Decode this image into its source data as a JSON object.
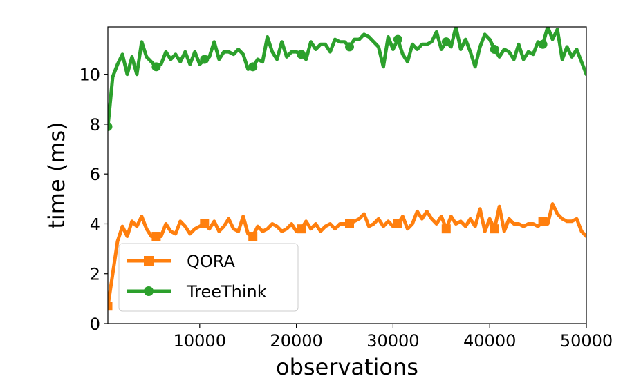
{
  "chart_data": {
    "type": "line",
    "title": "",
    "xlabel": "observations",
    "ylabel": "time (ms)",
    "xlim": [
      500,
      50000
    ],
    "ylim": [
      0,
      11.9
    ],
    "xticks": [
      10000,
      20000,
      30000,
      40000,
      50000
    ],
    "xtick_labels": [
      "10000",
      "20000",
      "30000",
      "40000",
      "50000"
    ],
    "yticks": [
      0,
      2,
      4,
      6,
      8,
      10
    ],
    "ytick_labels": [
      "0",
      "2",
      "4",
      "6",
      "8",
      "10"
    ],
    "grid": false,
    "legend_position": "lower-left",
    "series": [
      {
        "name": "QORA",
        "color": "#ff7f0e",
        "marker": "square",
        "x": [
          500,
          1000,
          1500,
          2000,
          2500,
          3000,
          3500,
          4000,
          4500,
          5000,
          5500,
          6000,
          6500,
          7000,
          7500,
          8000,
          8500,
          9000,
          9500,
          10000,
          10500,
          11000,
          11500,
          12000,
          12500,
          13000,
          13500,
          14000,
          14500,
          15000,
          15500,
          16000,
          16500,
          17000,
          17500,
          18000,
          18500,
          19000,
          19500,
          20000,
          20500,
          21000,
          21500,
          22000,
          22500,
          23000,
          23500,
          24000,
          24500,
          25000,
          25500,
          26000,
          26500,
          27000,
          27500,
          28000,
          28500,
          29000,
          29500,
          30000,
          30500,
          31000,
          31500,
          32000,
          32500,
          33000,
          33500,
          34000,
          34500,
          35000,
          35500,
          36000,
          36500,
          37000,
          37500,
          38000,
          38500,
          39000,
          39500,
          40000,
          40500,
          41000,
          41500,
          42000,
          42500,
          43000,
          43500,
          44000,
          44500,
          45000,
          45500,
          46000,
          46500,
          47000,
          47500,
          48000,
          48500,
          49000,
          49500,
          50000
        ],
        "values": [
          0.7,
          2.0,
          3.3,
          3.9,
          3.5,
          4.1,
          3.9,
          4.3,
          3.8,
          3.5,
          3.5,
          3.5,
          4.0,
          3.7,
          3.6,
          4.1,
          3.9,
          3.6,
          3.8,
          3.9,
          4.0,
          3.8,
          4.1,
          3.7,
          3.9,
          4.2,
          3.8,
          3.7,
          4.3,
          3.6,
          3.5,
          3.9,
          3.7,
          3.8,
          4.0,
          3.9,
          3.7,
          3.8,
          4.0,
          3.7,
          3.8,
          4.1,
          3.8,
          4.0,
          3.7,
          3.9,
          4.0,
          3.8,
          4.0,
          4.0,
          4.0,
          4.1,
          4.2,
          4.4,
          3.9,
          4.0,
          4.2,
          3.9,
          4.1,
          3.9,
          4.0,
          4.3,
          3.8,
          4.0,
          4.5,
          4.2,
          4.5,
          4.2,
          4.0,
          4.3,
          3.8,
          4.3,
          4.0,
          4.1,
          3.9,
          4.2,
          3.9,
          4.6,
          3.7,
          4.2,
          3.8,
          4.7,
          3.7,
          4.2,
          4.0,
          4.0,
          3.9,
          4.0,
          4.0,
          3.9,
          4.1,
          4.0,
          4.8,
          4.4,
          4.2,
          4.1,
          4.1,
          4.2,
          3.7,
          3.5
        ]
      },
      {
        "name": "TreeThink",
        "color": "#2ca02c",
        "marker": "circle",
        "x": [
          500,
          1000,
          1500,
          2000,
          2500,
          3000,
          3500,
          4000,
          4500,
          5000,
          5500,
          6000,
          6500,
          7000,
          7500,
          8000,
          8500,
          9000,
          9500,
          10000,
          10500,
          11000,
          11500,
          12000,
          12500,
          13000,
          13500,
          14000,
          14500,
          15000,
          15500,
          16000,
          16500,
          17000,
          17500,
          18000,
          18500,
          19000,
          19500,
          20000,
          20500,
          21000,
          21500,
          22000,
          22500,
          23000,
          23500,
          24000,
          24500,
          25000,
          25500,
          26000,
          26500,
          27000,
          27500,
          28000,
          28500,
          29000,
          29500,
          30000,
          30500,
          31000,
          31500,
          32000,
          32500,
          33000,
          33500,
          34000,
          34500,
          35000,
          35500,
          36000,
          36500,
          37000,
          37500,
          38000,
          38500,
          39000,
          39500,
          40000,
          40500,
          41000,
          41500,
          42000,
          42500,
          43000,
          43500,
          44000,
          44500,
          45000,
          45500,
          46000,
          46500,
          47000,
          47500,
          48000,
          48500,
          49000,
          49500,
          50000
        ],
        "values": [
          7.9,
          9.9,
          10.4,
          10.8,
          10.0,
          10.7,
          10.0,
          11.3,
          10.7,
          10.5,
          10.3,
          10.4,
          10.9,
          10.6,
          10.8,
          10.5,
          10.9,
          10.4,
          10.9,
          10.4,
          10.6,
          10.7,
          11.3,
          10.6,
          10.9,
          10.9,
          10.8,
          11.0,
          10.8,
          10.2,
          10.3,
          10.6,
          10.5,
          11.5,
          10.9,
          10.6,
          11.3,
          10.7,
          10.9,
          10.9,
          10.8,
          10.6,
          11.3,
          11.0,
          11.2,
          11.2,
          10.9,
          11.4,
          11.3,
          11.3,
          11.1,
          11.4,
          11.4,
          11.6,
          11.5,
          11.3,
          11.1,
          10.3,
          11.5,
          11.0,
          11.4,
          10.8,
          10.5,
          11.2,
          11.0,
          11.2,
          11.2,
          11.3,
          11.7,
          11.0,
          11.3,
          11.1,
          11.9,
          11.0,
          11.4,
          10.9,
          10.3,
          11.1,
          11.6,
          11.4,
          11.0,
          10.7,
          11.0,
          10.9,
          10.6,
          11.2,
          10.6,
          10.9,
          10.8,
          11.3,
          11.2,
          11.9,
          11.4,
          11.8,
          10.6,
          11.1,
          10.7,
          11.0,
          10.5,
          10.0
        ],
        "marker_x": [
          500,
          5500,
          10500,
          15500,
          20500,
          25500,
          30500,
          35500,
          40500,
          45500
        ]
      }
    ]
  }
}
